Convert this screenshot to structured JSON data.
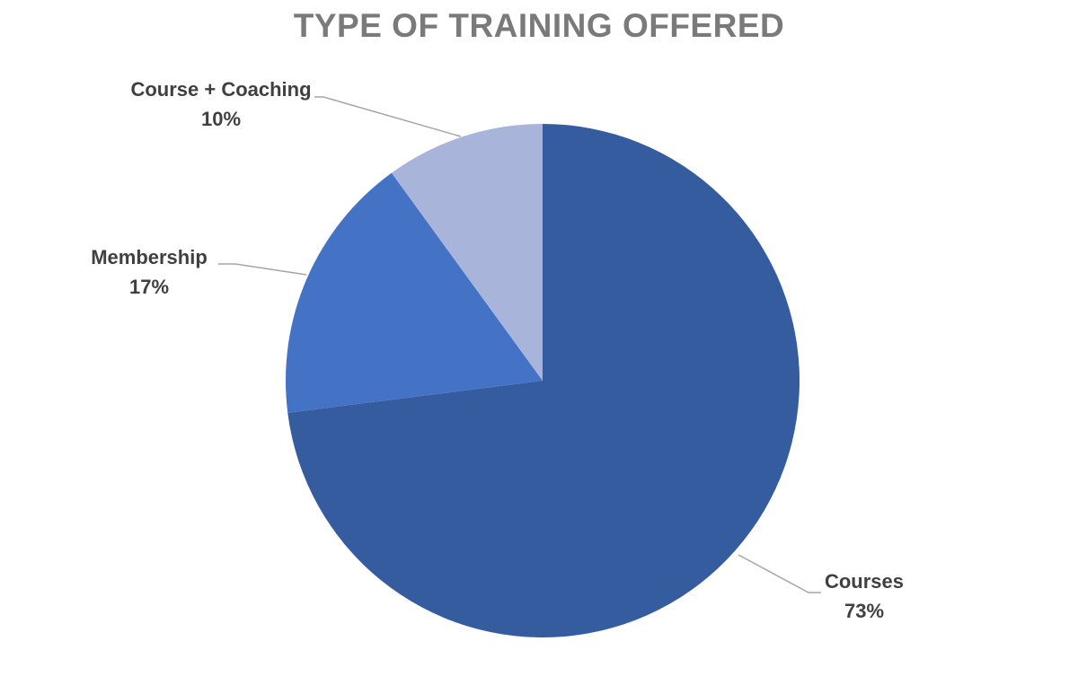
{
  "chart_data": {
    "type": "pie",
    "title": "TYPE OF TRAINING OFFERED",
    "start_angle_deg": 0,
    "direction": "clockwise",
    "legend": "none",
    "slices": [
      {
        "label": "Courses",
        "value": 73,
        "value_label": "73%",
        "color": "#355c9f"
      },
      {
        "label": "Membership",
        "value": 17,
        "value_label": "17%",
        "color": "#4472c4"
      },
      {
        "label": "Course + Coaching",
        "value": 10,
        "value_label": "10%",
        "color": "#a8b4da"
      }
    ]
  }
}
